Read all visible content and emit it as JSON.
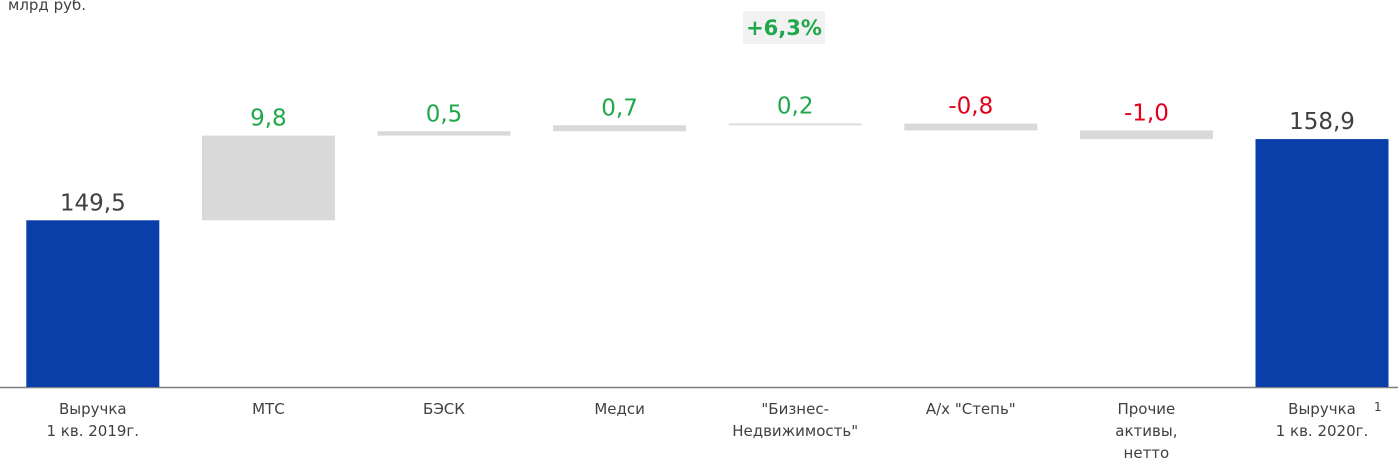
{
  "chart_data": {
    "type": "waterfall",
    "unit_label": "млрд руб.",
    "annotation": "+6,3%",
    "annotation_color": "#1fa84a",
    "categories": [
      "Выручка\n1 кв. 2019г.",
      "МТС",
      "БЭСК",
      "Медси",
      "\"Бизнес-\nНедвижимость\"",
      "А/х \"Степь\"",
      "Прочие\nактивы,\nнетто",
      "Выручка\n1 кв. 2020г."
    ],
    "footnote_mark": "1",
    "values": [
      149.5,
      9.8,
      0.5,
      0.7,
      0.2,
      -0.8,
      -1.0,
      158.9
    ],
    "value_labels": [
      "149,5",
      "9,8",
      "0,5",
      "0,7",
      "0,2",
      "-0,8",
      "-1,0",
      "158,9"
    ],
    "is_total": [
      true,
      false,
      false,
      false,
      false,
      false,
      false,
      true
    ],
    "colors": {
      "total": "#0a3ea8",
      "change": "#d9d9d9"
    },
    "label_colors": {
      "total": "#404040",
      "positive": "#1fa84a",
      "negative": "#e3001b"
    },
    "ylim": [
      130.2,
      175
    ]
  }
}
